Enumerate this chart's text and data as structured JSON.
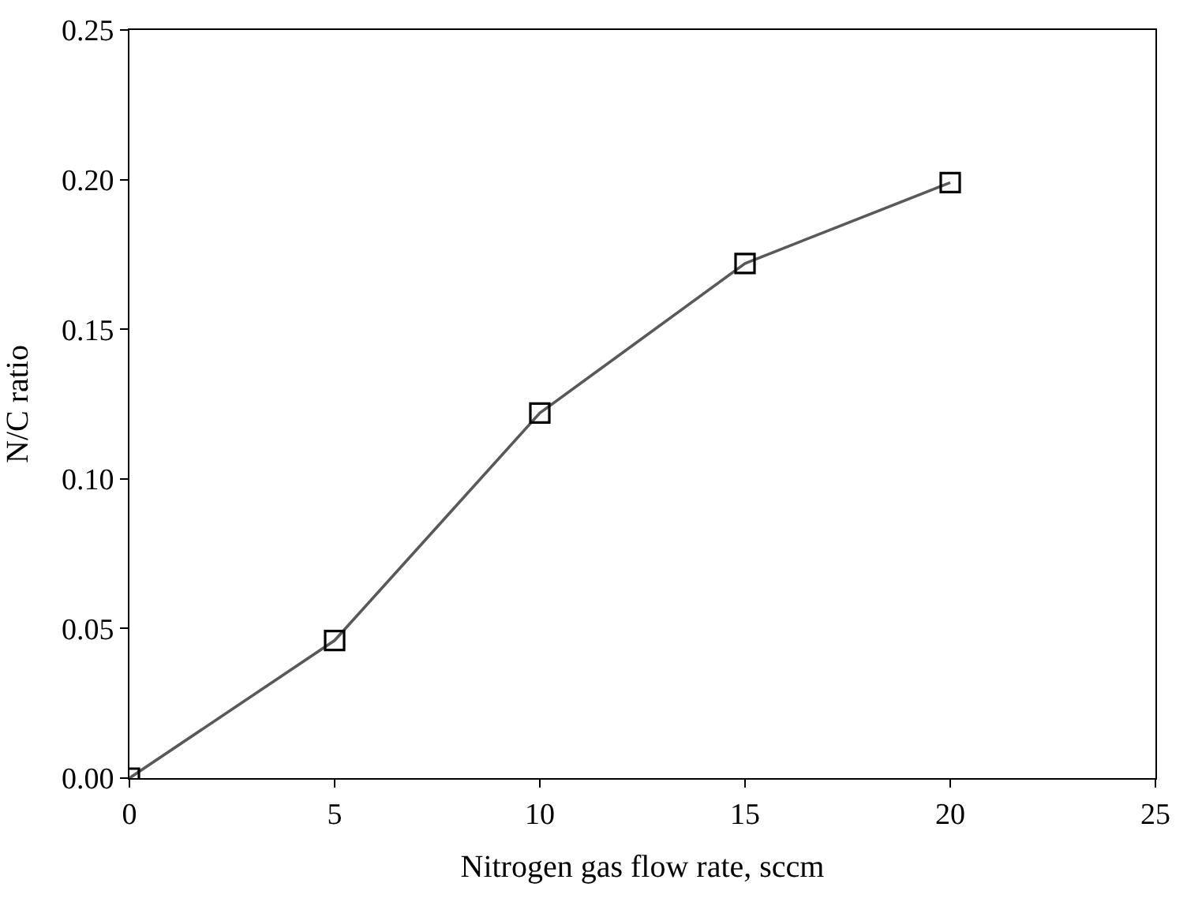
{
  "chart_data": {
    "type": "line",
    "xlabel": "Nitrogen gas flow rate, sccm",
    "ylabel": "N/C ratio",
    "x": [
      0,
      5,
      10,
      15,
      20
    ],
    "series": [
      {
        "color": "#595959",
        "values": [
          0.0,
          0.046,
          0.122,
          0.172,
          0.199
        ]
      }
    ],
    "xlim": [
      0,
      25
    ],
    "xticks": [
      0,
      5,
      10,
      15,
      20,
      25
    ],
    "ylim": [
      0,
      0.25
    ],
    "yticks": [
      {
        "value": 0,
        "label": "0.00"
      },
      {
        "value": 0.05,
        "label": "0.05"
      },
      {
        "value": 0.1,
        "label": "0.10"
      },
      {
        "value": 0.15,
        "label": "0.15"
      },
      {
        "value": 0.2,
        "label": "0.20"
      },
      {
        "value": 0.25,
        "label": "0.25"
      }
    ],
    "marker": "square",
    "line_style": "solid"
  }
}
